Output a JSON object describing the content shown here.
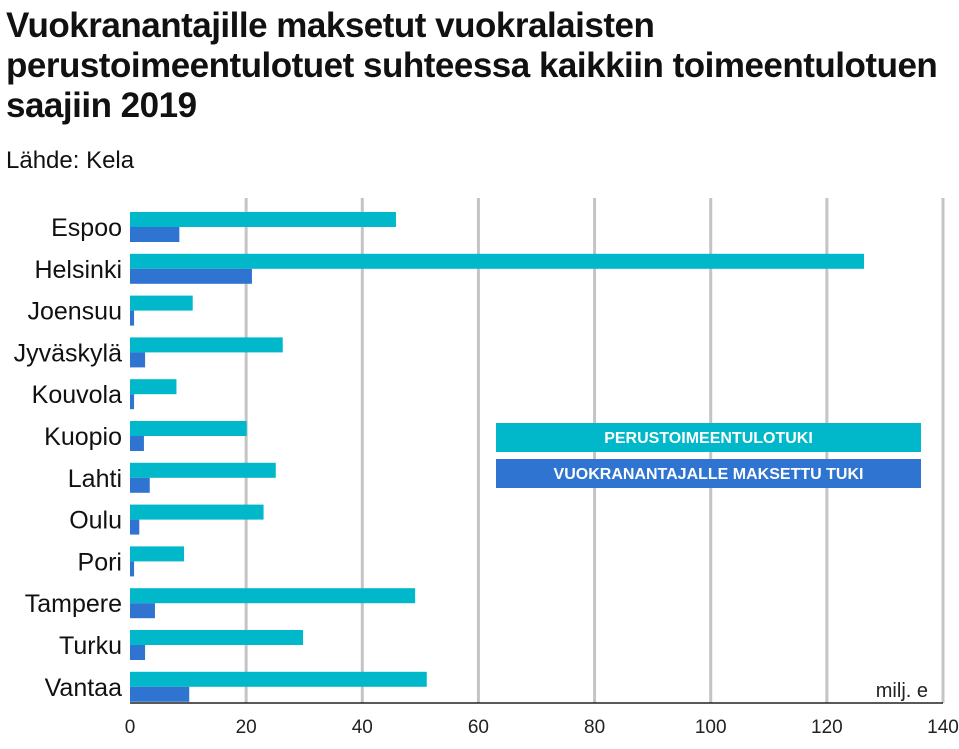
{
  "header": {
    "title": "Vuokranantajille maksetut vuokralaisten perustoimeentulotuet suhteessa kaikkiin toimeentulotuen saajiin 2019",
    "source": "Lähde: Kela"
  },
  "chart_data": {
    "type": "bar",
    "orientation": "horizontal",
    "title": "Vuokranantajille maksetut vuokralaisten perustoimeentulotuet suhteessa kaikkiin toimeentulotuen saajiin 2019",
    "unit": "milj. e",
    "categories": [
      "Espoo",
      "Helsinki",
      "Joensuu",
      "Jyväskylä",
      "Kouvola",
      "Kuopio",
      "Lahti",
      "Oulu",
      "Pori",
      "Tampere",
      "Turku",
      "Vantaa"
    ],
    "series": [
      {
        "name": "PERUSTOIMEENTULOTUKI",
        "color": "#00b8c9",
        "values": [
          45.8,
          126.4,
          10.8,
          26.3,
          8.0,
          20.1,
          25.1,
          23.0,
          9.3,
          49.1,
          29.8,
          51.1
        ]
      },
      {
        "name": "VUOKRANANTAJALLE MAKSETTU TUKI",
        "color": "#2f74d0",
        "values": [
          8.5,
          21.0,
          0.7,
          2.6,
          0.7,
          2.4,
          3.4,
          1.6,
          0.7,
          4.3,
          2.6,
          10.2
        ]
      }
    ],
    "xlim": [
      0,
      140
    ],
    "xticks": [
      0,
      20,
      40,
      60,
      80,
      100,
      120,
      140
    ],
    "grid": true,
    "legend_placement": "middle-right"
  }
}
